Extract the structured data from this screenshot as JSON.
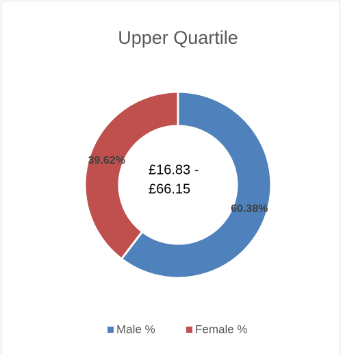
{
  "chart_data": {
    "type": "pie",
    "title": "Upper Quartile",
    "categories": [
      "Male %",
      "Female %"
    ],
    "values": [
      60.38,
      39.62
    ],
    "value_labels": [
      "60.38%",
      "39.62%"
    ],
    "colors": [
      "#4f81bd",
      "#c0504d"
    ],
    "center_label": [
      "£16.83 -",
      "£66.15"
    ],
    "legend": "bottom"
  }
}
